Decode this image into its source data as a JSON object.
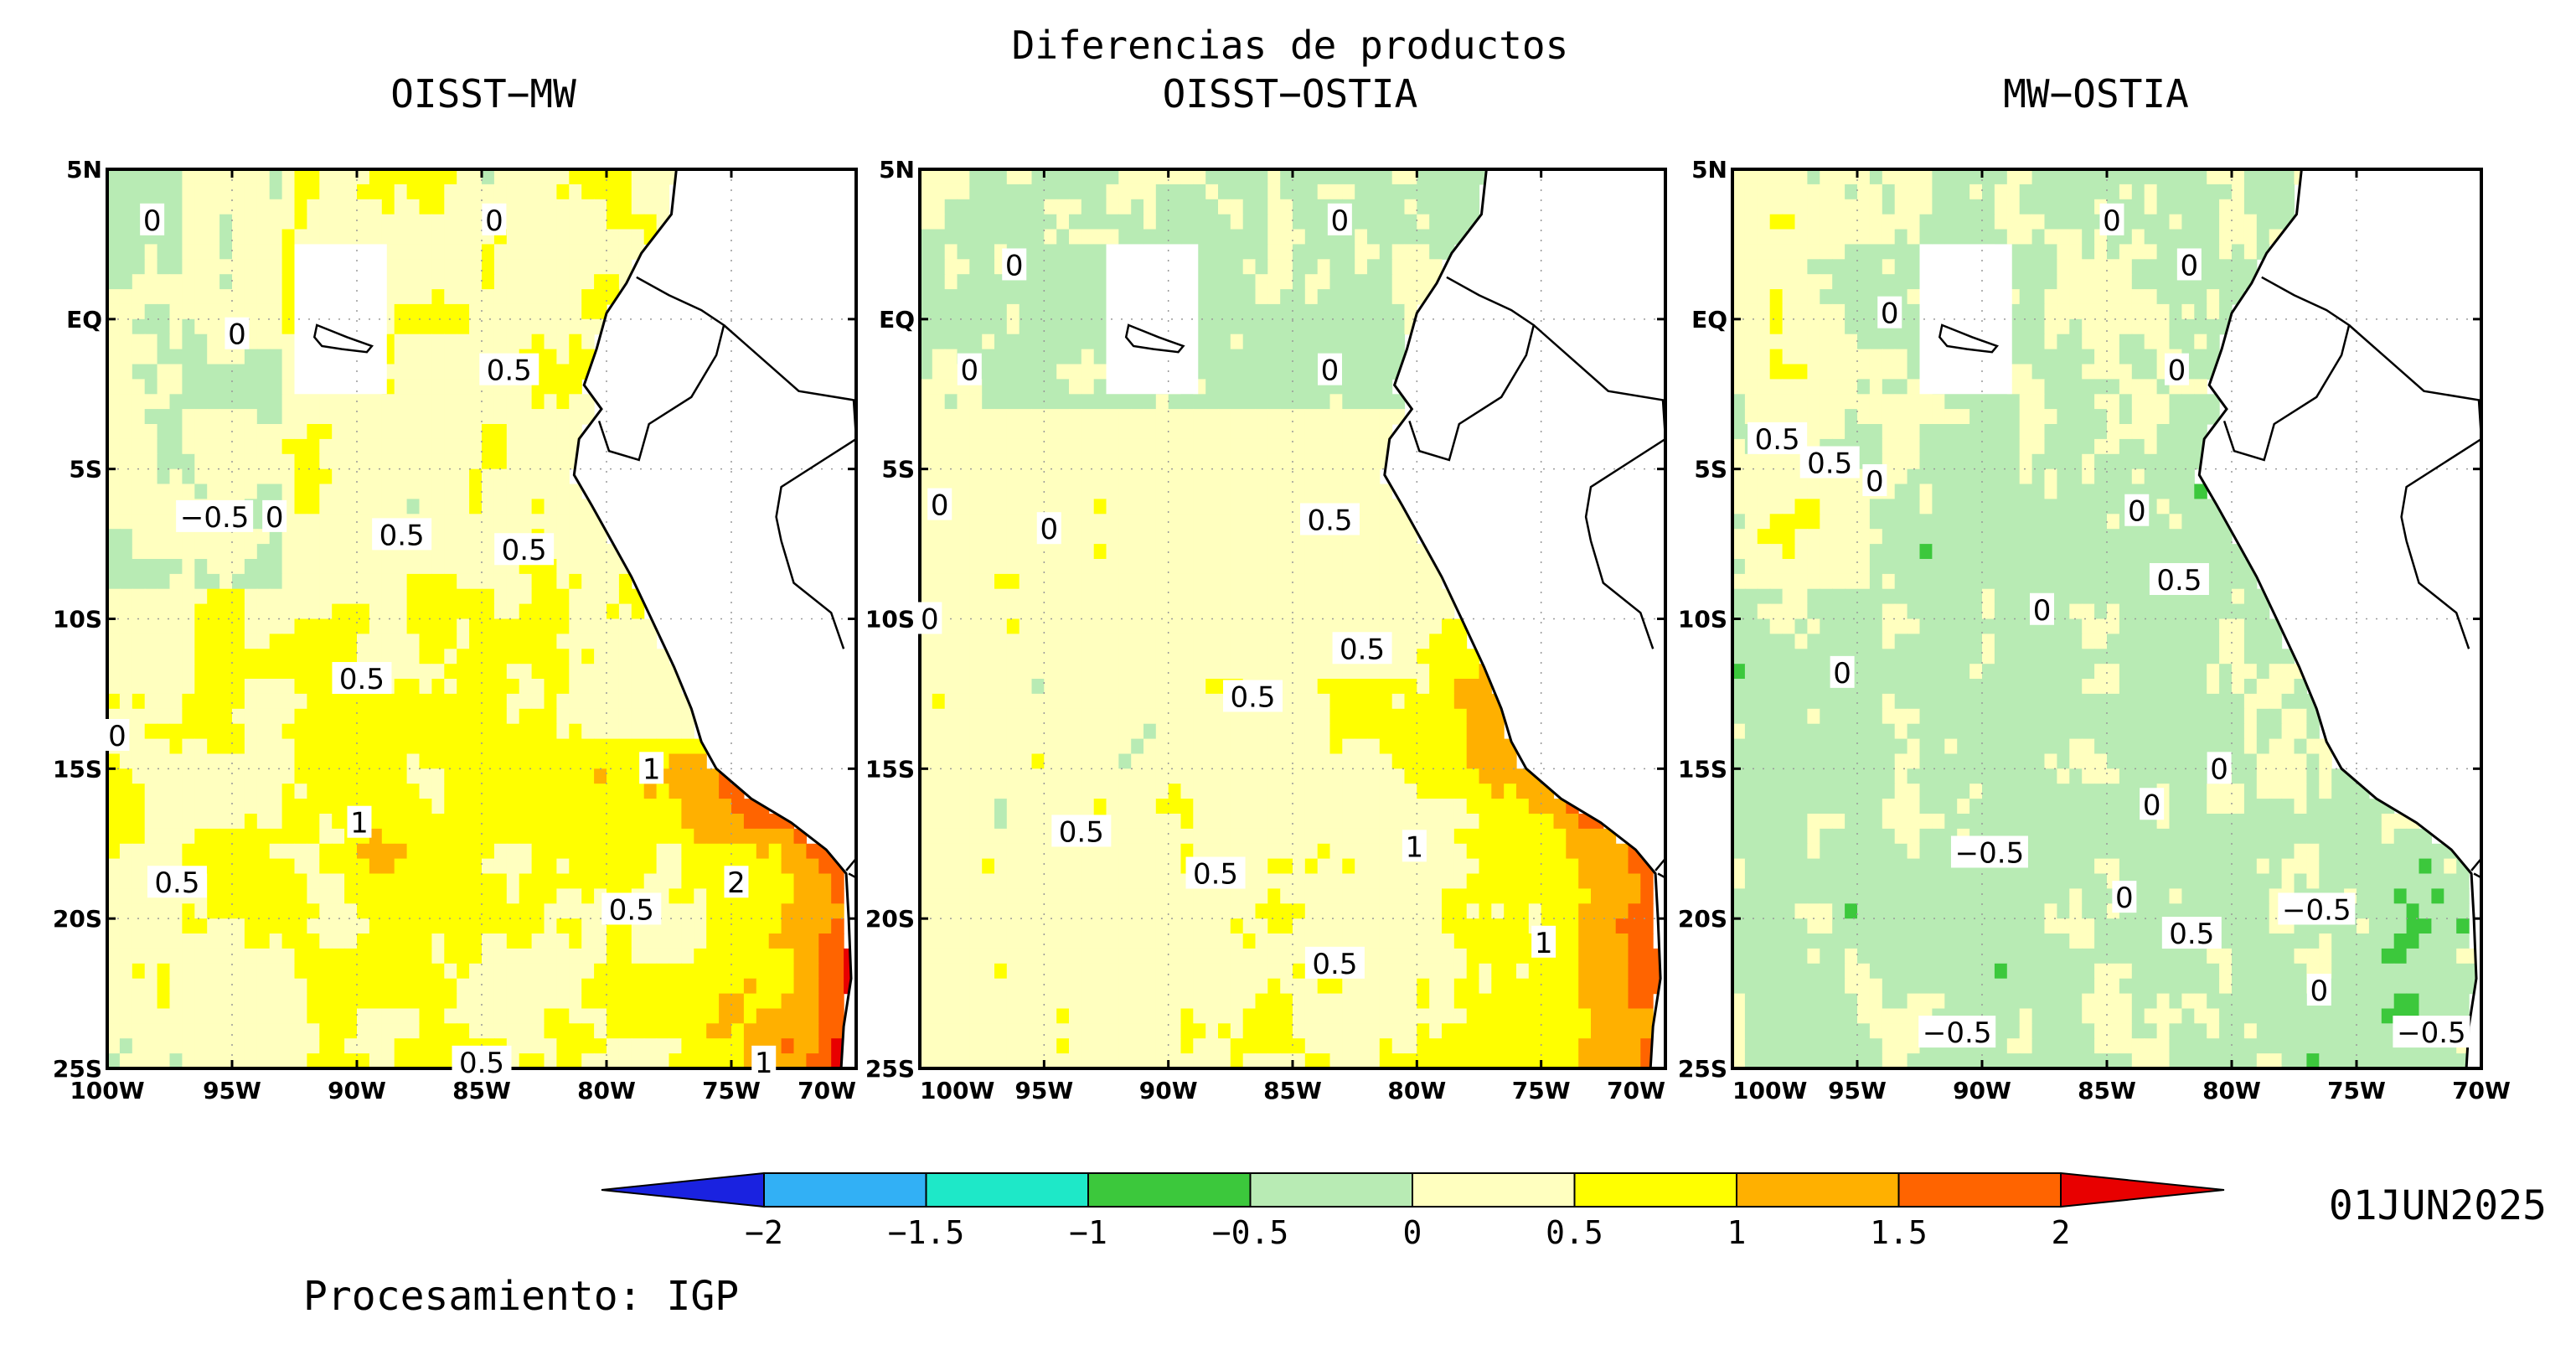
{
  "header": {
    "main_title": "Diferencias de productos",
    "panel_titles": [
      "OISST−MW",
      "OISST−OSTIA",
      "MW−OSTIA"
    ]
  },
  "axes": {
    "lat_labels": [
      "5N",
      "EQ",
      "5S",
      "10S",
      "15S",
      "20S",
      "25S"
    ],
    "lat_values": [
      5,
      0,
      -5,
      -10,
      -15,
      -20,
      -25
    ],
    "lon_labels": [
      "100W",
      "95W",
      "90W",
      "85W",
      "80W",
      "75W",
      "70W"
    ],
    "lon_values": [
      -100,
      -95,
      -90,
      -85,
      -80,
      -75,
      -70
    ],
    "lat_range": [
      -25,
      5
    ],
    "lon_range": [
      -100,
      -70
    ],
    "grid": "dotted"
  },
  "colorbar": {
    "tick_labels": [
      "−2",
      "−1.5",
      "−1",
      "−0.5",
      "0",
      "0.5",
      "1",
      "1.5",
      "2"
    ],
    "levels": [
      -2,
      -1.5,
      -1,
      -0.5,
      0,
      0.5,
      1,
      1.5,
      2
    ],
    "colors": [
      "#1a22e0",
      "#32b0f5",
      "#1ee8c8",
      "#3cc83c",
      "#b8ebb4",
      "#ffffbf",
      "#ffff00",
      "#ffb000",
      "#ff6400",
      "#e80000"
    ]
  },
  "footer": {
    "date": "01JUN2025",
    "credit": "Procesamiento: IGP"
  },
  "panels": [
    {
      "name": "OISST-MW",
      "contour_labels": [
        {
          "text": "0",
          "lon": -98.2,
          "lat": 3.3
        },
        {
          "text": "0",
          "lon": -84.5,
          "lat": 3.3
        },
        {
          "text": "0",
          "lon": -94.8,
          "lat": -0.5
        },
        {
          "text": "0.5",
          "lon": -83.9,
          "lat": -1.7
        },
        {
          "text": "−0.5",
          "lon": -95.7,
          "lat": -6.6
        },
        {
          "text": "0",
          "lon": -93.3,
          "lat": -6.6
        },
        {
          "text": "0.5",
          "lon": -88.2,
          "lat": -7.2
        },
        {
          "text": "0.5",
          "lon": -83.3,
          "lat": -7.7
        },
        {
          "text": "0.5",
          "lon": -89.8,
          "lat": -12.0
        },
        {
          "text": "0",
          "lon": -99.6,
          "lat": -13.9
        },
        {
          "text": "1",
          "lon": -89.9,
          "lat": -16.8
        },
        {
          "text": "1",
          "lon": -78.2,
          "lat": -15.0
        },
        {
          "text": "0.5",
          "lon": -97.2,
          "lat": -18.8
        },
        {
          "text": "2",
          "lon": -74.8,
          "lat": -18.8
        },
        {
          "text": "0.5",
          "lon": -79.0,
          "lat": -19.7
        },
        {
          "text": "0.5",
          "lon": -85.0,
          "lat": -24.8
        },
        {
          "text": "1",
          "lon": -73.7,
          "lat": -24.8
        }
      ]
    },
    {
      "name": "OISST-OSTIA",
      "contour_labels": [
        {
          "text": "0",
          "lon": -83.1,
          "lat": 3.3
        },
        {
          "text": "0",
          "lon": -96.2,
          "lat": 1.8
        },
        {
          "text": "0",
          "lon": -98.0,
          "lat": -1.7
        },
        {
          "text": "0",
          "lon": -83.5,
          "lat": -1.7
        },
        {
          "text": "0",
          "lon": -99.2,
          "lat": -6.2
        },
        {
          "text": "0",
          "lon": -94.8,
          "lat": -7.0
        },
        {
          "text": "0.5",
          "lon": -83.5,
          "lat": -6.7
        },
        {
          "text": "0",
          "lon": -99.6,
          "lat": -10.0
        },
        {
          "text": "0.5",
          "lon": -82.2,
          "lat": -11.0
        },
        {
          "text": "0.5",
          "lon": -86.6,
          "lat": -12.6
        },
        {
          "text": "0.5",
          "lon": -93.5,
          "lat": -17.1
        },
        {
          "text": "0.5",
          "lon": -88.1,
          "lat": -18.5
        },
        {
          "text": "1",
          "lon": -80.1,
          "lat": -17.6
        },
        {
          "text": "1",
          "lon": -74.9,
          "lat": -20.8
        },
        {
          "text": "0.5",
          "lon": -83.3,
          "lat": -21.5
        }
      ]
    },
    {
      "name": "MW-OSTIA",
      "contour_labels": [
        {
          "text": "0",
          "lon": -84.8,
          "lat": 3.3
        },
        {
          "text": "0",
          "lon": -81.7,
          "lat": 1.8
        },
        {
          "text": "0",
          "lon": -93.7,
          "lat": 0.2
        },
        {
          "text": "0",
          "lon": -82.2,
          "lat": -1.7
        },
        {
          "text": "0.5",
          "lon": -98.2,
          "lat": -4.0
        },
        {
          "text": "0.5",
          "lon": -96.1,
          "lat": -4.8
        },
        {
          "text": "0",
          "lon": -94.3,
          "lat": -5.4
        },
        {
          "text": "0",
          "lon": -83.8,
          "lat": -6.4
        },
        {
          "text": "0.5",
          "lon": -82.1,
          "lat": -8.7
        },
        {
          "text": "0",
          "lon": -87.6,
          "lat": -9.7
        },
        {
          "text": "0",
          "lon": -95.6,
          "lat": -11.8
        },
        {
          "text": "0",
          "lon": -80.5,
          "lat": -15.0
        },
        {
          "text": "0",
          "lon": -83.2,
          "lat": -16.2
        },
        {
          "text": "−0.5",
          "lon": -89.7,
          "lat": -17.8
        },
        {
          "text": "0",
          "lon": -84.3,
          "lat": -19.3
        },
        {
          "text": "−0.5",
          "lon": -76.6,
          "lat": -19.7
        },
        {
          "text": "0.5",
          "lon": -81.6,
          "lat": -20.5
        },
        {
          "text": "0",
          "lon": -76.5,
          "lat": -22.4
        },
        {
          "text": "−0.5",
          "lon": -91.0,
          "lat": -23.8
        },
        {
          "text": "−0.5",
          "lon": -72.0,
          "lat": -23.8
        }
      ]
    }
  ]
}
